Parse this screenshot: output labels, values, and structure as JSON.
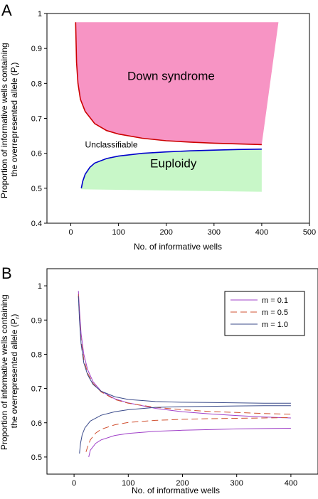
{
  "chart_data": [
    {
      "panel_label": "A",
      "type": "area",
      "xlabel": "No. of informative wells",
      "ylabel_line1": "Proportion of informative wells containing",
      "ylabel_line2": "the overrepresented allele (P",
      "ylabel_sub": "r",
      "ylabel_end": ")",
      "xlim": [
        -50,
        500
      ],
      "ylim": [
        0.4,
        1.0
      ],
      "xticks": [
        0,
        100,
        200,
        300,
        400,
        500
      ],
      "yticks": [
        0.4,
        0.5,
        0.6,
        0.7,
        0.8,
        0.9,
        1.0
      ],
      "grid": false,
      "regions": [
        {
          "name": "Down syndrome",
          "fill": "#f794c4",
          "boundary_color": "#cc0000",
          "upper": [
            [
              10,
              0.975
            ],
            [
              435,
              0.975
            ]
          ],
          "corner": [
            [
              400,
              0.625
            ],
            [
              435,
              0.975
            ]
          ],
          "boundary": [
            [
              10,
              0.975
            ],
            [
              12,
              0.86
            ],
            [
              15,
              0.8
            ],
            [
              20,
              0.755
            ],
            [
              30,
              0.72
            ],
            [
              50,
              0.685
            ],
            [
              75,
              0.665
            ],
            [
              100,
              0.655
            ],
            [
              150,
              0.643
            ],
            [
              200,
              0.636
            ],
            [
              250,
              0.632
            ],
            [
              300,
              0.629
            ],
            [
              350,
              0.627
            ],
            [
              400,
              0.625
            ]
          ]
        },
        {
          "name": "Euploidy",
          "fill": "#c8f7c8",
          "boundary_color": "#0000cc",
          "lower": [
            [
              22,
              0.497
            ],
            [
              400,
              0.49
            ]
          ],
          "boundary": [
            [
              22,
              0.5
            ],
            [
              25,
              0.52
            ],
            [
              30,
              0.54
            ],
            [
              40,
              0.56
            ],
            [
              50,
              0.572
            ],
            [
              75,
              0.585
            ],
            [
              100,
              0.592
            ],
            [
              150,
              0.6
            ],
            [
              200,
              0.604
            ],
            [
              250,
              0.607
            ],
            [
              300,
              0.609
            ],
            [
              350,
              0.611
            ],
            [
              400,
              0.612
            ]
          ]
        }
      ],
      "annotations": [
        {
          "text": "Down syndrome",
          "x": 210,
          "y": 0.81
        },
        {
          "text": "Euploidy",
          "x": 215,
          "y": 0.56
        },
        {
          "text": "Unclassifiable",
          "x": 85,
          "y": 0.617
        }
      ]
    },
    {
      "panel_label": "B",
      "type": "line",
      "xlabel": "No. of informative wells",
      "ylabel_line1": "Proportion of informative wells containing",
      "ylabel_line2": "the overrepresented allele (P",
      "ylabel_sub": "r",
      "ylabel_end": ")",
      "xlim": [
        -50,
        450
      ],
      "ylim": [
        0.45,
        1.05
      ],
      "xticks": [
        0,
        100,
        200,
        300,
        400
      ],
      "yticks": [
        0.5,
        0.6,
        0.7,
        0.8,
        0.9,
        1.0
      ],
      "grid": false,
      "legend_position": "top-right",
      "series": [
        {
          "name": "m = 0.1",
          "color": "#a040c8",
          "dash": "",
          "upper": [
            [
              8,
              0.985
            ],
            [
              10,
              0.93
            ],
            [
              13,
              0.86
            ],
            [
              18,
              0.8
            ],
            [
              25,
              0.755
            ],
            [
              35,
              0.72
            ],
            [
              50,
              0.692
            ],
            [
              75,
              0.67
            ],
            [
              100,
              0.658
            ],
            [
              150,
              0.642
            ],
            [
              200,
              0.632
            ],
            [
              250,
              0.626
            ],
            [
              300,
              0.621
            ],
            [
              350,
              0.617
            ],
            [
              400,
              0.614
            ]
          ],
          "lower": [
            [
              27,
              0.5
            ],
            [
              30,
              0.52
            ],
            [
              40,
              0.54
            ],
            [
              50,
              0.55
            ],
            [
              75,
              0.563
            ],
            [
              100,
              0.569
            ],
            [
              150,
              0.575
            ],
            [
              200,
              0.578
            ],
            [
              250,
              0.58
            ],
            [
              300,
              0.582
            ],
            [
              350,
              0.583
            ],
            [
              400,
              0.584
            ]
          ]
        },
        {
          "name": "m = 0.5",
          "color": "#d05030",
          "dash": "9,5",
          "upper": [
            [
              8,
              0.975
            ],
            [
              10,
              0.91
            ],
            [
              13,
              0.84
            ],
            [
              18,
              0.785
            ],
            [
              25,
              0.745
            ],
            [
              35,
              0.715
            ],
            [
              50,
              0.69
            ],
            [
              75,
              0.668
            ],
            [
              100,
              0.657
            ],
            [
              150,
              0.645
            ],
            [
              200,
              0.638
            ],
            [
              250,
              0.633
            ],
            [
              300,
              0.63
            ],
            [
              350,
              0.627
            ],
            [
              400,
              0.625
            ]
          ],
          "lower": [
            [
              22,
              0.515
            ],
            [
              25,
              0.53
            ],
            [
              30,
              0.55
            ],
            [
              40,
              0.57
            ],
            [
              50,
              0.581
            ],
            [
              75,
              0.594
            ],
            [
              100,
              0.601
            ],
            [
              150,
              0.607
            ],
            [
              200,
              0.61
            ],
            [
              250,
              0.612
            ],
            [
              300,
              0.613
            ],
            [
              350,
              0.614
            ],
            [
              400,
              0.615
            ]
          ]
        },
        {
          "name": "m = 1.0",
          "color": "#3a4a8a",
          "dash": "",
          "upper": [
            [
              8,
              0.97
            ],
            [
              10,
              0.9
            ],
            [
              13,
              0.83
            ],
            [
              18,
              0.775
            ],
            [
              25,
              0.74
            ],
            [
              35,
              0.712
            ],
            [
              50,
              0.692
            ],
            [
              75,
              0.676
            ],
            [
              100,
              0.668
            ],
            [
              150,
              0.662
            ],
            [
              200,
              0.66
            ],
            [
              250,
              0.659
            ],
            [
              300,
              0.658
            ],
            [
              350,
              0.657
            ],
            [
              400,
              0.657
            ]
          ],
          "lower": [
            [
              10,
              0.51
            ],
            [
              12,
              0.54
            ],
            [
              15,
              0.565
            ],
            [
              20,
              0.585
            ],
            [
              30,
              0.605
            ],
            [
              50,
              0.622
            ],
            [
              75,
              0.632
            ],
            [
              100,
              0.638
            ],
            [
              150,
              0.645
            ],
            [
              200,
              0.647
            ],
            [
              250,
              0.648
            ],
            [
              300,
              0.649
            ],
            [
              350,
              0.65
            ],
            [
              400,
              0.65
            ]
          ]
        }
      ]
    }
  ]
}
